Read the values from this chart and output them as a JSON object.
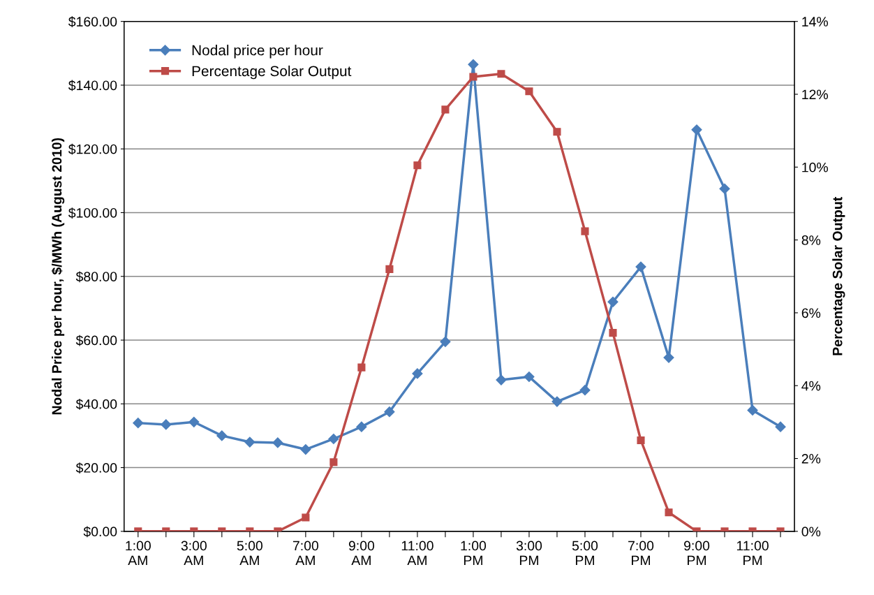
{
  "chart_data": {
    "type": "line",
    "ylabel": "Nodal Price per hour, $/MWh (August 2010)",
    "y2label": "Percentage Solar Output",
    "categories": [
      "1:00\nAM",
      null,
      "3:00\nAM",
      null,
      "5:00\nAM",
      null,
      "7:00\nAM",
      null,
      "9:00\nAM",
      null,
      "11:00\nAM",
      null,
      "1:00\nPM",
      null,
      "3:00\nPM",
      null,
      "5:00\nPM",
      null,
      "7:00\nPM",
      null,
      "9:00\nPM",
      null,
      "11:00\nPM",
      null
    ],
    "series": [
      {
        "name": "Nodal price per hour",
        "color": "#4a7ebb",
        "marker": "diamond",
        "values": [
          34,
          33.5,
          34.3,
          30,
          28,
          27.8,
          25.7,
          29,
          32.8,
          37.5,
          49.5,
          59.5,
          146.5,
          47.5,
          48.5,
          40.7,
          44.3,
          72,
          83,
          54.5,
          126,
          107.5,
          38,
          32.8
        ]
      },
      {
        "name": "Percentage Solar Output",
        "color": "#be4b48",
        "marker": "square",
        "axis": "y2",
        "values": [
          0,
          0,
          0,
          0,
          0,
          0,
          0.38,
          1.9,
          4.5,
          7.2,
          10.05,
          11.58,
          12.48,
          12.56,
          12.08,
          10.97,
          8.24,
          5.45,
          2.5,
          0.52,
          0,
          0,
          0,
          0
        ]
      }
    ],
    "ylim": [
      0,
      160
    ],
    "yticks": [
      {
        "value": 0,
        "label": "$0.00"
      },
      {
        "value": 20,
        "label": "$20.00"
      },
      {
        "value": 40,
        "label": "$40.00"
      },
      {
        "value": 60,
        "label": "$60.00"
      },
      {
        "value": 80,
        "label": "$80.00"
      },
      {
        "value": 100,
        "label": "$100.00"
      },
      {
        "value": 120,
        "label": "$120.00"
      },
      {
        "value": 140,
        "label": "$140.00"
      },
      {
        "value": 160,
        "label": "$160.00"
      }
    ],
    "y2lim": [
      0,
      14
    ],
    "y2ticks": [
      {
        "value": 0,
        "label": "0%"
      },
      {
        "value": 2,
        "label": "2%"
      },
      {
        "value": 4,
        "label": "4%"
      },
      {
        "value": 6,
        "label": "6%"
      },
      {
        "value": 8,
        "label": "8%"
      },
      {
        "value": 10,
        "label": "10%"
      },
      {
        "value": 12,
        "label": "12%"
      },
      {
        "value": 14,
        "label": "14%"
      }
    ],
    "grid": "y",
    "legend": "top left"
  }
}
